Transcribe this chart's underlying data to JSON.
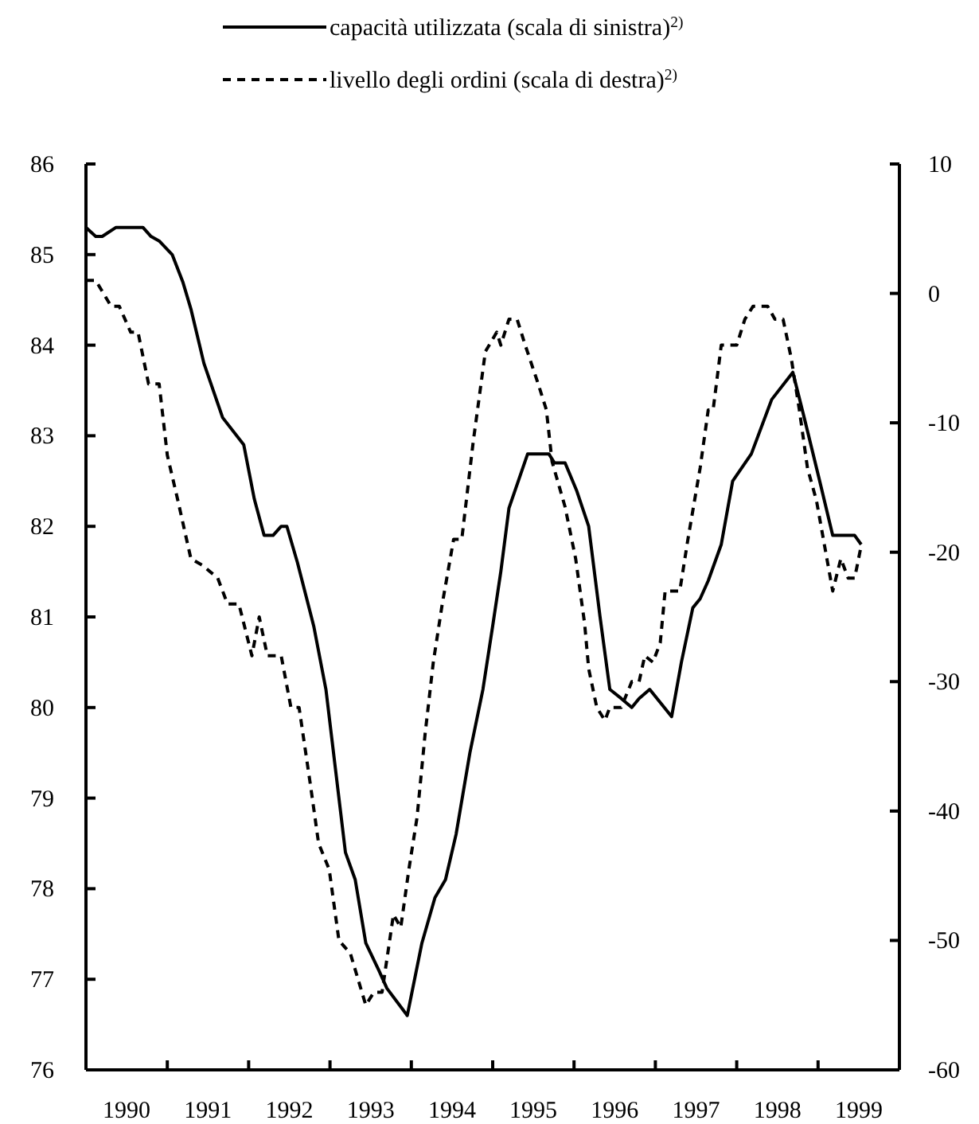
{
  "chart_data": {
    "type": "line",
    "legend": "top",
    "xlim": [
      1990,
      2000
    ],
    "xticks": [
      {
        "value": 1991,
        "label": null
      },
      {
        "value": 1992,
        "label": null
      },
      {
        "value": 1993,
        "label": null
      },
      {
        "value": 1994,
        "label": null
      },
      {
        "value": 1995,
        "label": null
      },
      {
        "value": 1996,
        "label": null
      },
      {
        "value": 1997,
        "label": null
      },
      {
        "value": 1998,
        "label": null
      },
      {
        "value": 1999,
        "label": null
      },
      {
        "value": 1990.5,
        "label": "1990"
      },
      {
        "value": 1991.5,
        "label": "1991"
      },
      {
        "value": 1992.5,
        "label": "1992"
      },
      {
        "value": 1993.5,
        "label": "1993"
      },
      {
        "value": 1994.5,
        "label": "1994"
      },
      {
        "value": 1995.5,
        "label": "1995"
      },
      {
        "value": 1996.5,
        "label": "1996"
      },
      {
        "value": 1997.5,
        "label": "1997"
      },
      {
        "value": 1998.5,
        "label": "1998"
      },
      {
        "value": 1999.5,
        "label": "1999"
      }
    ],
    "ylim": [
      76,
      86
    ],
    "yticks": [
      76,
      77,
      78,
      79,
      80,
      81,
      82,
      83,
      84,
      85,
      86
    ],
    "y2lim": [
      -60,
      10
    ],
    "y2ticks": [
      -60,
      -50,
      -40,
      -30,
      -20,
      -10,
      0,
      10
    ],
    "series": [
      {
        "name": "capacità utilizzata (scala di sinistra)$^{2)}$",
        "color": "#000000",
        "line_style": "solid",
        "x": [
          1990.0,
          1990.12,
          1990.2,
          1990.37,
          1990.7,
          1990.8,
          1990.9,
          1991.06,
          1991.19,
          1991.29,
          1991.45,
          1991.68,
          1991.94,
          1992.07,
          1992.19,
          1992.3,
          1992.4,
          1992.47,
          1992.6,
          1992.8,
          1992.95,
          1993.19,
          1993.31,
          1993.44,
          1993.6,
          1993.7,
          1993.95,
          1994.13,
          1994.29,
          1994.42,
          1994.55,
          1994.72,
          1994.88,
          1995.0,
          1995.1,
          1995.2,
          1995.43,
          1995.69,
          1995.76,
          1995.89,
          1996.03,
          1996.18,
          1996.32,
          1996.44,
          1996.58,
          1996.71,
          1996.8,
          1996.93,
          1997.2,
          1997.32,
          1997.46,
          1997.55,
          1997.65,
          1997.81,
          1997.95,
          1998.18,
          1998.43,
          1998.69,
          1998.83,
          1999.02,
          1999.18,
          1999.45,
          1999.53
        ],
        "values": [
          85.3,
          85.2,
          85.2,
          85.3,
          85.3,
          85.2,
          85.15,
          85.0,
          84.7,
          84.4,
          83.8,
          83.2,
          82.9,
          82.3,
          81.9,
          81.9,
          82.0,
          82.0,
          81.6,
          80.9,
          80.2,
          78.4,
          78.1,
          77.4,
          77.1,
          76.9,
          76.6,
          77.4,
          77.9,
          78.1,
          78.6,
          79.5,
          80.2,
          80.9,
          81.5,
          82.2,
          82.8,
          82.8,
          82.7,
          82.7,
          82.4,
          82.0,
          81.0,
          80.2,
          80.1,
          80.0,
          80.1,
          80.2,
          79.9,
          80.5,
          81.1,
          81.2,
          81.4,
          81.8,
          82.5,
          82.8,
          83.4,
          83.7,
          83.2,
          82.5,
          81.9,
          81.9,
          81.8
        ]
      },
      {
        "name": "livello degli ordini (scala di destra)$^{2)}$",
        "color": "#000000",
        "line_style": "dashed",
        "axis": "y2",
        "x": [
          1990.0,
          1990.12,
          1990.31,
          1990.41,
          1990.55,
          1990.64,
          1990.77,
          1990.9,
          1991.0,
          1991.13,
          1991.29,
          1991.43,
          1991.62,
          1991.74,
          1991.88,
          1992.04,
          1992.13,
          1992.23,
          1992.4,
          1992.52,
          1992.62,
          1992.76,
          1992.86,
          1992.99,
          1993.11,
          1993.25,
          1993.44,
          1993.54,
          1993.64,
          1993.78,
          1993.87,
          1993.97,
          1994.07,
          1994.17,
          1994.27,
          1994.38,
          1994.52,
          1994.62,
          1994.76,
          1994.91,
          1995.05,
          1995.1,
          1995.2,
          1995.3,
          1995.4,
          1995.56,
          1995.66,
          1995.73,
          1995.89,
          1996.02,
          1996.13,
          1996.18,
          1996.28,
          1996.38,
          1996.44,
          1996.58,
          1996.71,
          1996.8,
          1996.87,
          1996.97,
          1997.06,
          1997.12,
          1997.3,
          1997.4,
          1997.55,
          1997.65,
          1997.71,
          1997.81,
          1998.0,
          1998.1,
          1998.2,
          1998.38,
          1998.47,
          1998.57,
          1998.67,
          1998.77,
          1998.87,
          1998.98,
          1999.08,
          1999.18,
          1999.28,
          1999.37,
          1999.45,
          1999.53
        ],
        "values": [
          1,
          1,
          -1,
          -1,
          -3,
          -3,
          -7,
          -7,
          -12.5,
          -16,
          -20.5,
          -21,
          -22,
          -24,
          -24,
          -28,
          -25,
          -28,
          -28,
          -32,
          -32,
          -38,
          -42.5,
          -44.5,
          -50,
          -51,
          -55,
          -54,
          -54,
          -48,
          -49,
          -44.5,
          -40.5,
          -34,
          -28.5,
          -24,
          -19,
          -19,
          -11.5,
          -4.5,
          -3,
          -4,
          -2,
          -2,
          -4,
          -7,
          -9,
          -13,
          -16.5,
          -20.5,
          -25.5,
          -29,
          -32,
          -33,
          -32,
          -32,
          -30,
          -30,
          -28,
          -28.5,
          -27,
          -23,
          -23,
          -19,
          -13.5,
          -9,
          -9,
          -4,
          -4,
          -2,
          -1,
          -1,
          -2,
          -2,
          -5,
          -9,
          -13.5,
          -16,
          -19.5,
          -23,
          -20.5,
          -22,
          -22,
          -19.5
        ]
      }
    ]
  }
}
